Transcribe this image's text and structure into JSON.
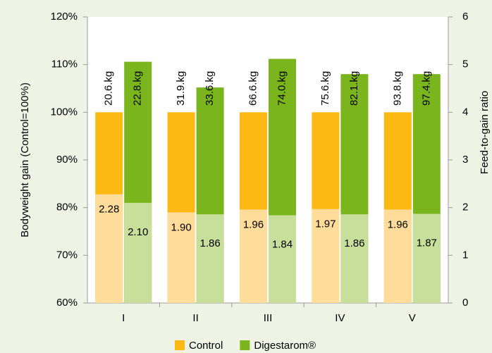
{
  "chart_data": {
    "type": "bar",
    "categories": [
      "I",
      "II",
      "III",
      "IV",
      "V"
    ],
    "ylabel": "Bodyweight gain (Control=100%)",
    "y2label": "Feed-to-gain ratio",
    "ylim": [
      60,
      120
    ],
    "yticks": [
      {
        "value": 60,
        "label": "60%"
      },
      {
        "value": 70,
        "label": "70%"
      },
      {
        "value": 80,
        "label": "80%"
      },
      {
        "value": 90,
        "label": "90%"
      },
      {
        "value": 100,
        "label": "100%"
      },
      {
        "value": 110,
        "label": "110%"
      },
      {
        "value": 120,
        "label": "120%"
      }
    ],
    "y2lim": [
      0,
      6
    ],
    "y2ticks": [
      0,
      1,
      2,
      3,
      4,
      5,
      6
    ],
    "series": [
      {
        "name": "Control",
        "color": "#fdb913",
        "values": [
          100,
          100,
          100,
          100,
          100
        ],
        "weight_labels": [
          "20.6.kg",
          "31.9.kg",
          "66.6.kg",
          "75.6.kg",
          "93.8.kg"
        ]
      },
      {
        "name": "Digestarom®",
        "color": "#7ab51d",
        "values": [
          110.6,
          105.2,
          111.2,
          108,
          108
        ],
        "weight_labels": [
          "22.8.kg",
          "33.6.kg",
          "74.0.kg",
          "82.1.kg",
          "97.4.kg"
        ]
      },
      {
        "color": "#fedc9a",
        "axis": "y2",
        "values": [
          2.28,
          1.9,
          1.96,
          1.97,
          1.96
        ],
        "value_labels": [
          "2.28",
          "1.90",
          "1.96",
          "1.97",
          "1.96"
        ]
      },
      {
        "color": "#c8df9c",
        "axis": "y2",
        "values": [
          2.1,
          1.86,
          1.84,
          1.86,
          1.87
        ],
        "value_labels": [
          "2.10",
          "1.86",
          "1.84",
          "1.86",
          "1.87"
        ]
      }
    ]
  }
}
